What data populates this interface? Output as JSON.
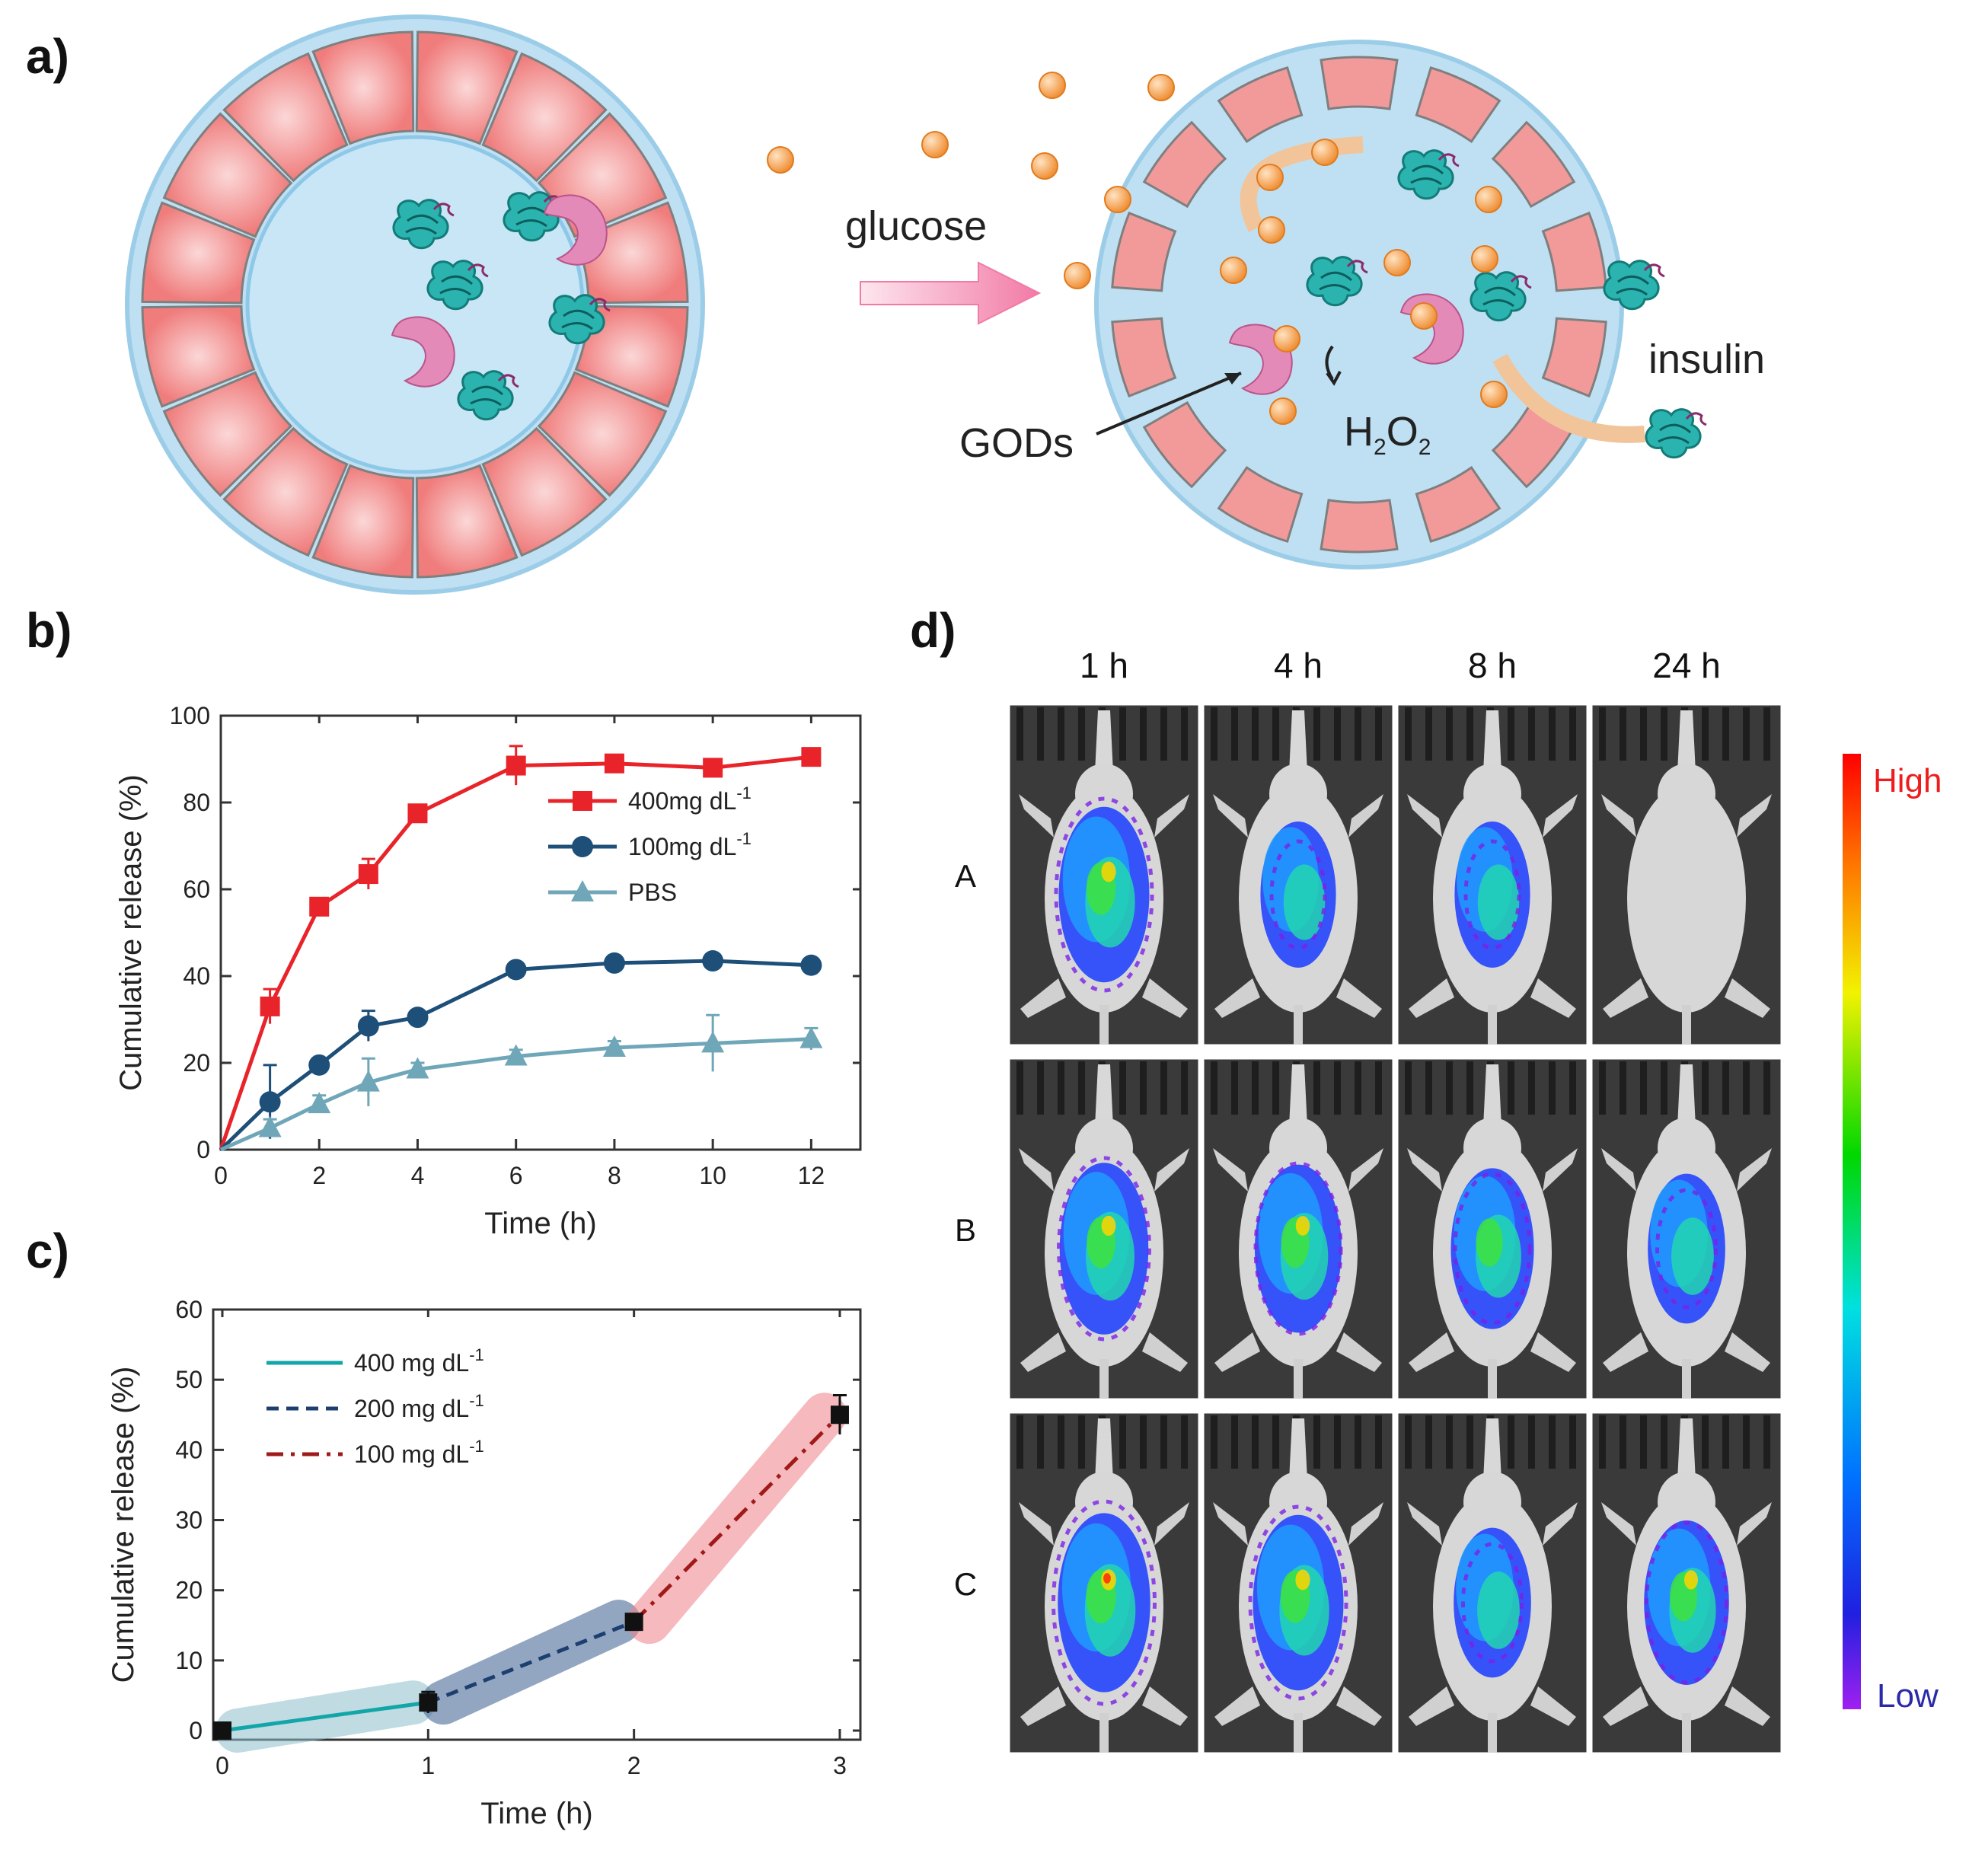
{
  "panels": {
    "a": {
      "label": "a)",
      "glucose": "glucose",
      "insulin": "insulin",
      "gods": "GODs",
      "h2o2": {
        "h": "H",
        "sub2a": "2",
        "o": "O",
        "sub2b": "2"
      }
    },
    "b": {
      "label": "b)"
    },
    "c": {
      "label": "c)"
    },
    "d": {
      "label": "d)",
      "columns": [
        "1 h",
        "4 h",
        "8 h",
        "24 h"
      ],
      "rows": [
        "A",
        "B",
        "C"
      ],
      "scale_high": "High",
      "scale_low": "Low"
    }
  },
  "chart_data": [
    {
      "id": "b",
      "type": "line",
      "xlabel": "Time (h)",
      "ylabel": "Cumulative release (%)",
      "xlim": [
        0,
        13
      ],
      "ylim": [
        0,
        100
      ],
      "xticks": [
        "0",
        "2",
        "4",
        "6",
        "8",
        "10",
        "12"
      ],
      "yticks": [
        "0",
        "20",
        "40",
        "60",
        "80",
        "100"
      ],
      "series": [
        {
          "name": "400mg dL",
          "sup": "-1",
          "color": "#e8242a",
          "marker": "square",
          "x": [
            0,
            1,
            2,
            3,
            4,
            6,
            8,
            10,
            12
          ],
          "y": [
            0,
            33,
            56,
            63.5,
            77.5,
            88.5,
            89,
            88,
            90.5
          ],
          "err": [
            0,
            4,
            1,
            3.5,
            1,
            4.5,
            1,
            1,
            1
          ]
        },
        {
          "name": "100mg dL",
          "sup": "-1",
          "color": "#1d4f79",
          "marker": "circle",
          "x": [
            0,
            1,
            2,
            3,
            4,
            6,
            8,
            10,
            12
          ],
          "y": [
            0,
            11,
            19.5,
            28.5,
            30.5,
            41.5,
            43,
            43.5,
            42.5
          ],
          "err": [
            0,
            8.5,
            1,
            3.5,
            1,
            1,
            1,
            1,
            1
          ]
        },
        {
          "name": "PBS",
          "sup": "",
          "color": "#6fa7b8",
          "marker": "triangle",
          "x": [
            0,
            1,
            2,
            3,
            4,
            6,
            8,
            10,
            12
          ],
          "y": [
            0,
            5,
            10.5,
            15.5,
            18.5,
            21.5,
            23.5,
            24.5,
            25.5
          ],
          "err": [
            0,
            2,
            2,
            5.5,
            1.5,
            1.5,
            1.5,
            6.5,
            2.5
          ]
        }
      ]
    },
    {
      "id": "c",
      "type": "line",
      "xlabel": "Time (h)",
      "ylabel": "Cumulative release (%)",
      "xlim": [
        0,
        3.1
      ],
      "ylim": [
        0,
        60
      ],
      "xticks": [
        "0",
        "1",
        "2",
        "3"
      ],
      "yticks": [
        "0",
        "10",
        "20",
        "30",
        "40",
        "50",
        "60"
      ],
      "points": {
        "x": [
          0,
          1,
          2,
          3
        ],
        "y": [
          0,
          4,
          15.5,
          45
        ],
        "err": [
          1,
          1.5,
          1,
          2.8
        ]
      },
      "segments": [
        {
          "name": "400 mg dL",
          "sup": "-1",
          "color": "#12a6a8",
          "band": "#8fbfcc",
          "style": "solid",
          "x": [
            0,
            1
          ],
          "y": [
            0,
            4
          ]
        },
        {
          "name": "200 mg dL",
          "sup": "-1",
          "color": "#1d3f70",
          "band": "#3c5f8f",
          "style": "dashed",
          "x": [
            1,
            2
          ],
          "y": [
            4,
            15.5
          ]
        },
        {
          "name": "100 mg dL",
          "sup": "-1",
          "color": "#a01a1a",
          "band": "#f08088",
          "style": "dashdot",
          "x": [
            2,
            3
          ],
          "y": [
            15.5,
            45
          ]
        }
      ]
    }
  ],
  "colors": {
    "shell_blue": "#bfe0f2",
    "outline_blue": "#8ec8e8",
    "segment_red": "#f08c8c",
    "glucose_orange": "#f6a04a",
    "protein_teal": "#2bb3b0",
    "gods_pink": "#e07ab0",
    "arrow_pink": "#f48fb1",
    "arrow_tan": "#f2c49a"
  }
}
